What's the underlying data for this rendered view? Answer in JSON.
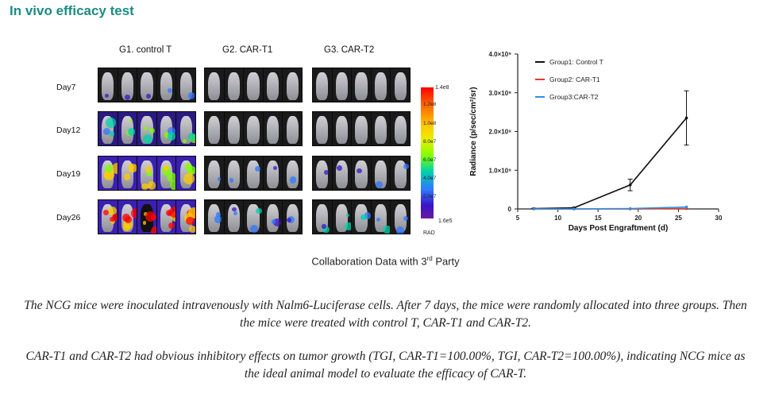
{
  "header": {
    "title": "In vivo efficacy test"
  },
  "imaging": {
    "groups": [
      {
        "label": "G1. control T"
      },
      {
        "label": "G2. CAR-T1"
      },
      {
        "label": "G3. CAR-T2"
      }
    ],
    "days": [
      {
        "label": "Day7"
      },
      {
        "label": "Day12"
      },
      {
        "label": "Day19"
      },
      {
        "label": "Day26"
      }
    ],
    "colorbar": {
      "max_label": "1.4e8",
      "tick_labels": [
        "1.2e8",
        "1.0e8",
        "8.0e7",
        "6.0e7",
        "4.0e7",
        "2.0e7"
      ],
      "min_label": "1.6e5",
      "unit": "RAD",
      "colors": [
        "#ff0000",
        "#ffcc00",
        "#7fff00",
        "#00d3a8",
        "#2f78ff",
        "#3a14c8"
      ]
    }
  },
  "chart_data": {
    "type": "line",
    "xlabel": "Days Post Engraftment (d)",
    "ylabel": "Radiance (p/sec/cm²/sr)",
    "xlim": [
      5,
      30
    ],
    "ylim": [
      0,
      4.0
    ],
    "x_ticks": [
      "5",
      "10",
      "15",
      "20",
      "25",
      "30"
    ],
    "y_ticks": [
      "0",
      "1.0×10⁹",
      "2.0×10⁹",
      "3.0×10⁹",
      "4.0×10⁹"
    ],
    "legend_position": "top-right",
    "series": [
      {
        "name": "Group1: Control T",
        "color": "#111111",
        "x": [
          7,
          12,
          19,
          26
        ],
        "values": [
          0.01,
          0.03,
          0.62,
          2.35
        ],
        "errors": [
          0.01,
          0.01,
          0.15,
          0.7
        ]
      },
      {
        "name": "Group2: CAR-T1",
        "color": "#e53a2c",
        "x": [
          7,
          12,
          19,
          26
        ],
        "values": [
          0.0,
          0.0,
          0.0,
          0.01
        ],
        "errors": [
          0,
          0,
          0,
          0
        ]
      },
      {
        "name": "Group3:CAR-T2",
        "color": "#2f8fe0",
        "x": [
          7,
          12,
          19,
          26
        ],
        "values": [
          0.0,
          0.0,
          0.01,
          0.05
        ],
        "errors": [
          0,
          0,
          0,
          0
        ]
      }
    ]
  },
  "caption": {
    "text_before": "Collaboration Data with 3",
    "sup": "rd",
    "text_after": " Party"
  },
  "paragraphs": {
    "p1": "The NCG mice were inoculated intravenously with Nalm6-Luciferase cells. After 7 days, the mice were randomly allocated into three groups. Then the mice were treated with control T, CAR-T1 and CAR-T2.",
    "p2": "CAR-T1 and CAR-T2 had obvious inhibitory effects on tumor growth (TGI, CAR-T1=100.00%, TGI, CAR-T2=100.00%), indicating NCG mice as the ideal animal model to evaluate the efficacy of CAR-T."
  }
}
